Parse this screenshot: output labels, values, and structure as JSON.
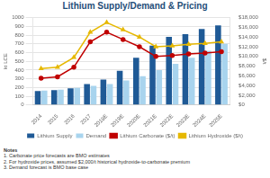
{
  "chart_data": {
    "type": "bar",
    "title": "Lithium Supply/Demand & Pricing",
    "categories": [
      "2014",
      "2015",
      "2016",
      "2017",
      "2018E",
      "2019E",
      "2020E",
      "2021E",
      "2022E",
      "2023E",
      "2024E",
      "2025E"
    ],
    "series": [
      {
        "name": "Lithium Supply",
        "type": "bar",
        "color": "#1f5a96",
        "values": [
          160,
          170,
          190,
          240,
          290,
          390,
          540,
          680,
          780,
          810,
          870,
          910
        ]
      },
      {
        "name": "Demand",
        "type": "bar",
        "color": "#a8d4ee",
        "values": [
          165,
          175,
          195,
          220,
          240,
          280,
          330,
          400,
          470,
          540,
          620,
          700
        ]
      },
      {
        "name": "Lithium Carbonate ($/t)",
        "type": "line",
        "axis": "y2",
        "color": "#c00000",
        "marker": "circle",
        "values": [
          5500,
          5800,
          7800,
          13000,
          15000,
          13500,
          12000,
          10000,
          10200,
          10500,
          10700,
          11000
        ]
      },
      {
        "name": "Lithium Hydroxide ($/t)",
        "type": "line",
        "axis": "y2",
        "color": "#e6b800",
        "marker": "triangle",
        "values": [
          7500,
          7800,
          9800,
          15000,
          17000,
          15500,
          14000,
          12000,
          12200,
          12500,
          12700,
          13000
        ]
      }
    ],
    "y_label": "kt LCE",
    "y2_label": "$/t",
    "ylim": [
      0,
      1000
    ],
    "yticks": [
      0,
      100,
      200,
      300,
      400,
      500,
      600,
      700,
      800,
      900,
      1000
    ],
    "y2lim": [
      0,
      18000
    ],
    "y2ticks": [
      {
        "value": 0,
        "label": "$0"
      },
      {
        "value": 2000,
        "label": "$2,000"
      },
      {
        "value": 4000,
        "label": "$4,000"
      },
      {
        "value": 6000,
        "label": "$6,000"
      },
      {
        "value": 8000,
        "label": "$8,000"
      },
      {
        "value": 10000,
        "label": "$10,000"
      },
      {
        "value": 12000,
        "label": "$12,000"
      },
      {
        "value": 14000,
        "label": "$14,000"
      },
      {
        "value": 16000,
        "label": "$16,000"
      },
      {
        "value": 18000,
        "label": "$18,000"
      }
    ],
    "grid": true,
    "legend": "bottom"
  },
  "notes": {
    "heading": "Notes",
    "items": [
      "1. Carbonate price forecasts are BMO estimates",
      "2. For hydroxide prices, assumed $2,000/t historical hydroxide-to-carbonate premium",
      "3. Demand forecast is BMO base case"
    ]
  }
}
